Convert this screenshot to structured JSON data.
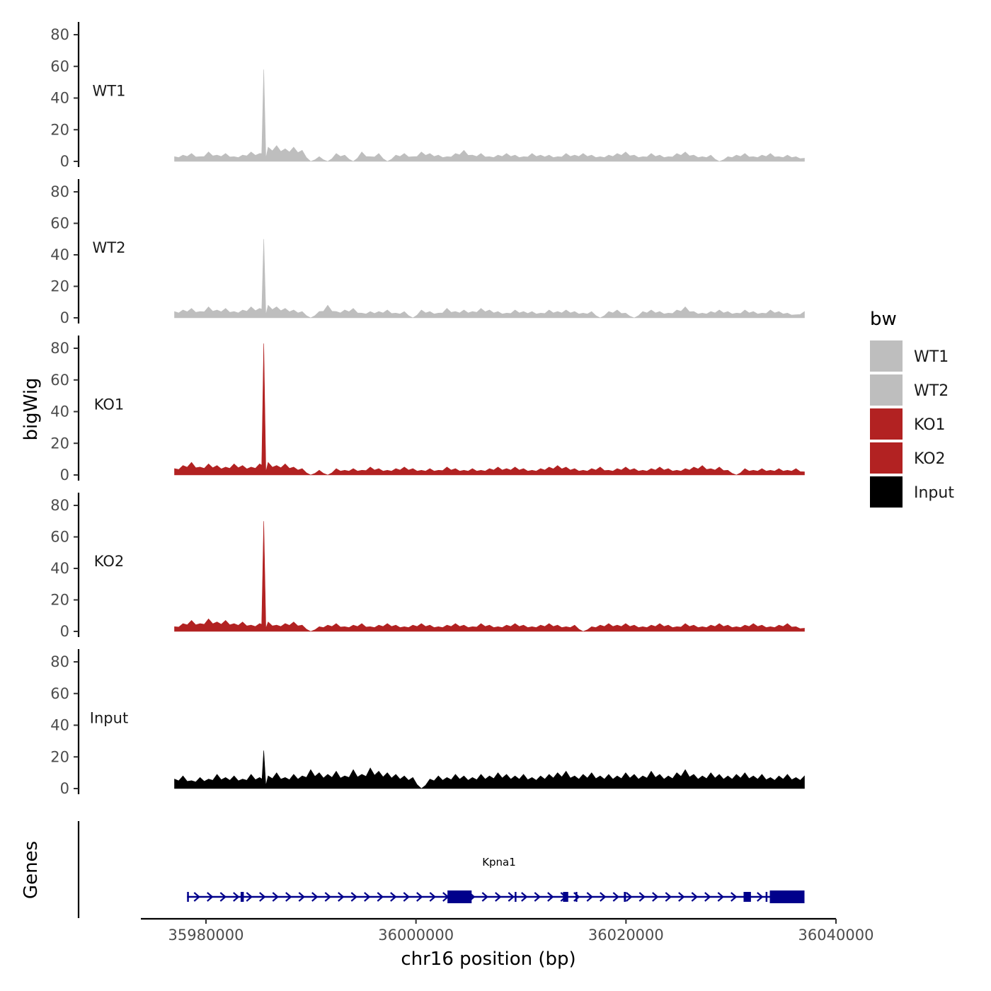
{
  "chart_data": {
    "type": "area",
    "subtype": "genome-track",
    "title": "",
    "xlabel": "chr16 position (bp)",
    "ylabel": "bigWig",
    "genes_label": "Genes",
    "chromosome": "chr16",
    "xlim": [
      35974000,
      36040000
    ],
    "data_x_range": [
      35977000,
      36037000
    ],
    "x_ticks": [
      35980000,
      36000000,
      36020000,
      36040000
    ],
    "x_tick_labels": [
      "35980000",
      "36000000",
      "36020000",
      "36040000"
    ],
    "ylim": [
      0,
      85
    ],
    "y_ticks": [
      0,
      20,
      40,
      60,
      80
    ],
    "y_tick_labels": [
      "0",
      "20",
      "40",
      "60",
      "80"
    ],
    "tracks": [
      {
        "name": "WT1",
        "color": "#bebebe",
        "peak_x": 35985500,
        "peak_value": 58,
        "baseline_noise": [
          3,
          4,
          5,
          3,
          6,
          4,
          5,
          3,
          4,
          6,
          5,
          9,
          10,
          8,
          9,
          7,
          0,
          3,
          0,
          5,
          4,
          0,
          6,
          3,
          5,
          0,
          4,
          5,
          3,
          6,
          5,
          4,
          3,
          5,
          7,
          4,
          5,
          3,
          4,
          5,
          4,
          3,
          5,
          4,
          4,
          3,
          5,
          4,
          5,
          4,
          3,
          4,
          5,
          6,
          4,
          3,
          5,
          4,
          3,
          5,
          6,
          4,
          3,
          4,
          0,
          3,
          4,
          5,
          3,
          4,
          5,
          3,
          4,
          3,
          2
        ]
      },
      {
        "name": "WT2",
        "color": "#bebebe",
        "peak_x": 35985500,
        "peak_value": 50,
        "baseline_noise": [
          4,
          5,
          6,
          4,
          7,
          5,
          6,
          4,
          5,
          7,
          6,
          8,
          7,
          6,
          5,
          4,
          0,
          4,
          8,
          4,
          5,
          6,
          3,
          4,
          4,
          5,
          3,
          4,
          0,
          5,
          4,
          3,
          6,
          4,
          5,
          4,
          6,
          5,
          4,
          3,
          5,
          4,
          4,
          3,
          5,
          4,
          5,
          4,
          3,
          4,
          0,
          4,
          5,
          3,
          0,
          4,
          5,
          4,
          3,
          5,
          7,
          4,
          3,
          4,
          5,
          4,
          3,
          5,
          4,
          3,
          5,
          4,
          3,
          2,
          4
        ]
      },
      {
        "name": "KO1",
        "color": "#b22222",
        "peak_x": 35985500,
        "peak_value": 83,
        "baseline_noise": [
          4,
          6,
          8,
          5,
          7,
          6,
          5,
          7,
          6,
          5,
          7,
          8,
          6,
          7,
          5,
          4,
          0,
          3,
          0,
          4,
          3,
          4,
          3,
          5,
          4,
          3,
          4,
          5,
          4,
          3,
          4,
          3,
          5,
          4,
          3,
          4,
          3,
          4,
          5,
          4,
          5,
          4,
          3,
          4,
          5,
          6,
          5,
          4,
          3,
          4,
          5,
          3,
          4,
          5,
          4,
          3,
          4,
          5,
          4,
          3,
          4,
          5,
          6,
          4,
          5,
          3,
          0,
          4,
          3,
          4,
          3,
          4,
          3,
          4,
          2
        ]
      },
      {
        "name": "KO2",
        "color": "#b22222",
        "peak_x": 35985500,
        "peak_value": 70,
        "baseline_noise": [
          3,
          5,
          7,
          5,
          8,
          6,
          7,
          5,
          6,
          4,
          5,
          6,
          4,
          5,
          6,
          4,
          0,
          3,
          4,
          5,
          3,
          4,
          5,
          3,
          4,
          5,
          4,
          3,
          4,
          5,
          4,
          3,
          4,
          5,
          4,
          3,
          5,
          4,
          3,
          4,
          5,
          4,
          3,
          4,
          5,
          4,
          3,
          4,
          0,
          3,
          4,
          5,
          4,
          5,
          4,
          3,
          4,
          5,
          4,
          3,
          5,
          4,
          3,
          4,
          5,
          4,
          3,
          4,
          5,
          4,
          3,
          4,
          5,
          3,
          2
        ]
      },
      {
        "name": "Input",
        "color": "#000000",
        "peak_x": 35985500,
        "peak_value": 24,
        "baseline_noise": [
          6,
          8,
          5,
          7,
          6,
          9,
          7,
          8,
          6,
          9,
          7,
          8,
          10,
          7,
          9,
          8,
          12,
          10,
          9,
          11,
          8,
          12,
          9,
          13,
          11,
          10,
          9,
          8,
          7,
          0,
          6,
          8,
          7,
          9,
          8,
          7,
          9,
          8,
          10,
          9,
          8,
          9,
          7,
          8,
          9,
          10,
          11,
          8,
          9,
          10,
          8,
          9,
          8,
          10,
          9,
          8,
          11,
          9,
          8,
          10,
          12,
          9,
          8,
          10,
          9,
          8,
          9,
          10,
          8,
          9,
          7,
          8,
          9,
          7,
          8
        ]
      }
    ],
    "legend": {
      "title": "bw",
      "position": "right",
      "entries": [
        {
          "label": "WT1",
          "color": "#bebebe"
        },
        {
          "label": "WT2",
          "color": "#bebebe"
        },
        {
          "label": "KO1",
          "color": "#b22222"
        },
        {
          "label": "KO2",
          "color": "#b22222"
        },
        {
          "label": "Input",
          "color": "#000000"
        }
      ]
    },
    "gene": {
      "name": "Kpna1",
      "color": "#00008b",
      "start": 35978200,
      "end": 36037000,
      "strand": "+",
      "exons": [
        [
          35978200,
          35978350
        ],
        [
          35983300,
          35983600
        ],
        [
          36003000,
          36005300
        ],
        [
          36009400,
          36009500
        ],
        [
          36014000,
          36014500
        ],
        [
          36015200,
          36015300
        ],
        [
          36019800,
          36020000
        ],
        [
          36031200,
          36031900
        ],
        [
          36033300,
          36033400
        ],
        [
          36033700,
          36037000
        ]
      ]
    }
  }
}
